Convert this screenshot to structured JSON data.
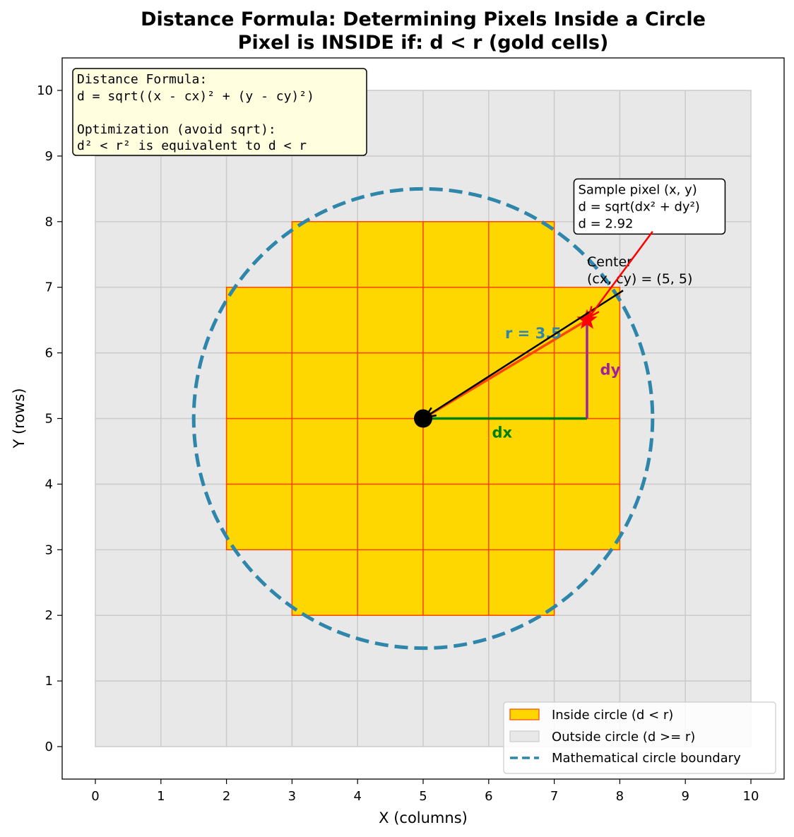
{
  "chart_data": {
    "type": "heatmap",
    "title": [
      "Distance Formula: Determining Pixels Inside a Circle",
      "Pixel is INSIDE if: d < r  (gold cells)"
    ],
    "xlabel": "X (columns)",
    "ylabel": "Y (rows)",
    "xlim": [
      -0.5,
      10.5
    ],
    "ylim": [
      -0.5,
      10.5
    ],
    "xticks": [
      "0",
      "1",
      "2",
      "3",
      "4",
      "5",
      "6",
      "7",
      "8",
      "9",
      "10"
    ],
    "yticks": [
      "0",
      "1",
      "2",
      "3",
      "4",
      "5",
      "6",
      "7",
      "8",
      "9",
      "10"
    ],
    "grid_extent": [
      0,
      10
    ],
    "center": [
      5,
      5
    ],
    "radius": 3.5,
    "inside_cells": [
      [
        3,
        2
      ],
      [
        4,
        2
      ],
      [
        5,
        2
      ],
      [
        6,
        2
      ],
      [
        2,
        3
      ],
      [
        3,
        3
      ],
      [
        4,
        3
      ],
      [
        5,
        3
      ],
      [
        6,
        3
      ],
      [
        7,
        3
      ],
      [
        2,
        4
      ],
      [
        3,
        4
      ],
      [
        4,
        4
      ],
      [
        5,
        4
      ],
      [
        6,
        4
      ],
      [
        7,
        4
      ],
      [
        2,
        5
      ],
      [
        3,
        5
      ],
      [
        4,
        5
      ],
      [
        5,
        5
      ],
      [
        6,
        5
      ],
      [
        7,
        5
      ],
      [
        2,
        6
      ],
      [
        3,
        6
      ],
      [
        4,
        6
      ],
      [
        5,
        6
      ],
      [
        6,
        6
      ],
      [
        7,
        6
      ],
      [
        3,
        7
      ],
      [
        4,
        7
      ],
      [
        5,
        7
      ],
      [
        6,
        7
      ]
    ],
    "sample_point": [
      7.5,
      6.5
    ],
    "colors": {
      "inside": "#FFD700",
      "inside_edge": "#FF4500",
      "outside": "#E8E8E8",
      "outside_edge": "#CCCCCC",
      "circle": "#2E86AB",
      "radius_line": "#FF4500",
      "dx": "#008000",
      "dy": "#A020A0",
      "sample": "#FF0000"
    },
    "labels": {
      "radius": "r = 3.5",
      "dx": "dx",
      "dy": "dy",
      "center": [
        "Center",
        "(cx, cy) = (5, 5)"
      ],
      "sample": [
        "Sample pixel (x, y)",
        "d = sqrt(dx² + dy²)",
        "d = 2.92"
      ]
    },
    "formula_box": [
      "Distance Formula:",
      "d = sqrt((x - cx)² + (y - cy)²)",
      "",
      "Optimization (avoid sqrt):",
      "d² < r²  is equivalent to  d < r"
    ],
    "legend": {
      "placement": "lower-right",
      "items": [
        "Inside circle (d < r)",
        "Outside circle (d >= r)",
        "Mathematical circle boundary"
      ]
    }
  }
}
